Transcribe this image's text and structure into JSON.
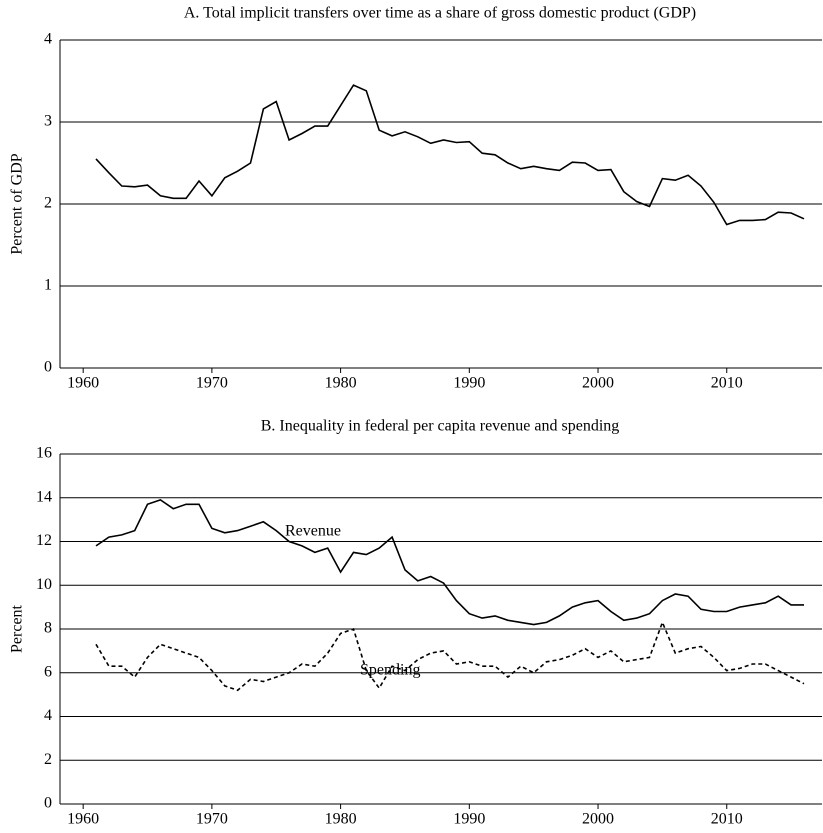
{
  "chart_data": [
    {
      "type": "line",
      "title": "A.  Total implicit transfers over time as a share of gross domestic product (GDP)",
      "y_label": "Percent of GDP",
      "x": [
        1961,
        1962,
        1963,
        1964,
        1965,
        1966,
        1967,
        1968,
        1969,
        1970,
        1971,
        1972,
        1973,
        1974,
        1975,
        1976,
        1977,
        1978,
        1979,
        1980,
        1981,
        1982,
        1983,
        1984,
        1985,
        1986,
        1987,
        1988,
        1989,
        1990,
        1991,
        1992,
        1993,
        1994,
        1995,
        1996,
        1997,
        1998,
        1999,
        2000,
        2001,
        2002,
        2003,
        2004,
        2005,
        2006,
        2007,
        2008,
        2009,
        2010,
        2011,
        2012,
        2013,
        2014,
        2015,
        2016
      ],
      "series": [
        {
          "color": "#000000",
          "line_style": "solid",
          "values": [
            2.55,
            2.38,
            2.22,
            2.21,
            2.23,
            2.1,
            2.07,
            2.07,
            2.28,
            2.1,
            2.32,
            2.4,
            2.5,
            3.16,
            3.25,
            2.78,
            2.86,
            2.95,
            2.95,
            3.2,
            3.45,
            3.38,
            2.9,
            2.83,
            2.88,
            2.82,
            2.74,
            2.78,
            2.75,
            2.76,
            2.62,
            2.6,
            2.5,
            2.43,
            2.46,
            2.43,
            2.41,
            2.51,
            2.5,
            2.41,
            2.42,
            2.15,
            2.03,
            1.97,
            2.31,
            2.29,
            2.35,
            2.22,
            2.02,
            1.75,
            1.8,
            1.8,
            1.81,
            1.9,
            1.89,
            1.82
          ]
        }
      ],
      "xlim": [
        1958.2,
        2017.4
      ],
      "xticks": [
        1960,
        1970,
        1980,
        1990,
        2000,
        2010
      ],
      "ylim": [
        0,
        4
      ],
      "yticks": [
        0,
        1,
        2,
        3,
        4
      ],
      "grid": true
    },
    {
      "type": "line",
      "title": "B.  Inequality in federal per capita revenue and spending",
      "y_label": "Percent",
      "x": [
        1961,
        1962,
        1963,
        1964,
        1965,
        1966,
        1967,
        1968,
        1969,
        1970,
        1971,
        1972,
        1973,
        1974,
        1975,
        1976,
        1977,
        1978,
        1979,
        1980,
        1981,
        1982,
        1983,
        1984,
        1985,
        1986,
        1987,
        1988,
        1989,
        1990,
        1991,
        1992,
        1993,
        1994,
        1995,
        1996,
        1997,
        1998,
        1999,
        2000,
        2001,
        2002,
        2003,
        2004,
        2005,
        2006,
        2007,
        2008,
        2009,
        2010,
        2011,
        2012,
        2013,
        2014,
        2015,
        2016
      ],
      "series": [
        {
          "name": "Revenue",
          "color": "#000000",
          "line_style": "solid",
          "values": [
            11.8,
            12.2,
            12.3,
            12.5,
            13.7,
            13.9,
            13.5,
            13.7,
            13.7,
            12.6,
            12.4,
            12.5,
            12.7,
            12.9,
            12.5,
            12.0,
            11.8,
            11.5,
            11.7,
            10.6,
            11.5,
            11.4,
            11.7,
            12.2,
            10.7,
            10.2,
            10.4,
            10.1,
            9.3,
            8.7,
            8.5,
            8.6,
            8.4,
            8.3,
            8.2,
            8.3,
            8.6,
            9.0,
            9.2,
            9.3,
            8.8,
            8.4,
            8.5,
            8.7,
            9.3,
            9.6,
            9.5,
            8.9,
            8.8,
            8.8,
            9.0,
            9.1,
            9.2,
            9.5,
            9.1,
            9.1
          ]
        },
        {
          "name": "Spending",
          "color": "#000000",
          "line_style": "dashed",
          "values": [
            7.3,
            6.3,
            6.3,
            5.8,
            6.7,
            7.3,
            7.1,
            6.9,
            6.7,
            6.1,
            5.4,
            5.2,
            5.7,
            5.6,
            5.8,
            6.0,
            6.4,
            6.3,
            6.9,
            7.8,
            8.0,
            6.1,
            5.3,
            6.3,
            6.1,
            6.6,
            6.9,
            7.0,
            6.4,
            6.5,
            6.3,
            6.3,
            5.8,
            6.3,
            6.0,
            6.5,
            6.6,
            6.8,
            7.1,
            6.7,
            7.0,
            6.5,
            6.6,
            6.7,
            8.3,
            6.9,
            7.1,
            7.2,
            6.7,
            6.1,
            6.2,
            6.4,
            6.4,
            6.1,
            5.8,
            5.5
          ]
        }
      ],
      "xlim": [
        1958.2,
        2017.4
      ],
      "xticks": [
        1960,
        1970,
        1980,
        1990,
        2000,
        2010
      ],
      "ylim": [
        0,
        16
      ],
      "yticks": [
        0,
        2,
        4,
        6,
        8,
        10,
        12,
        14,
        16
      ],
      "grid": true
    }
  ]
}
